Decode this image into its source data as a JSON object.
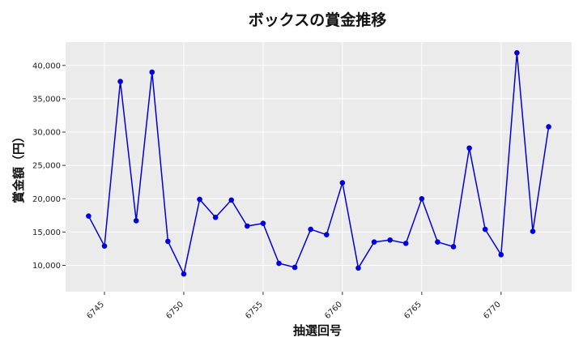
{
  "chart_data": {
    "type": "line",
    "title": "ボックスの賞金推移",
    "xlabel": "抽選回号",
    "ylabel": "賞金額（円）",
    "x": [
      6744,
      6745,
      6746,
      6747,
      6748,
      6749,
      6750,
      6751,
      6752,
      6753,
      6754,
      6755,
      6756,
      6757,
      6758,
      6759,
      6760,
      6761,
      6762,
      6763,
      6764,
      6765,
      6766,
      6767,
      6768,
      6769,
      6770,
      6771,
      6772,
      6773
    ],
    "series": [
      {
        "values": [
          17400,
          12900,
          37600,
          16700,
          39000,
          13600,
          8700,
          19900,
          17200,
          19800,
          15900,
          16300,
          10300,
          9700,
          15400,
          14600,
          22400,
          9600,
          13500,
          13800,
          13300,
          20000,
          13500,
          12800,
          27600,
          15400,
          11600,
          41900,
          15100,
          30800
        ],
        "color": "#0000dd"
      }
    ],
    "xticks": [
      "6745",
      "6750",
      "6755",
      "6760",
      "6765",
      "6770"
    ],
    "yticks": [
      "10,000",
      "15,000",
      "20,000",
      "25,000",
      "30,000",
      "35,000",
      "40,000"
    ],
    "xlim": [
      6742.55,
      6774.45
    ],
    "ylim": [
      6050,
      43500
    ],
    "grid": true,
    "background": "#ebebeb"
  }
}
